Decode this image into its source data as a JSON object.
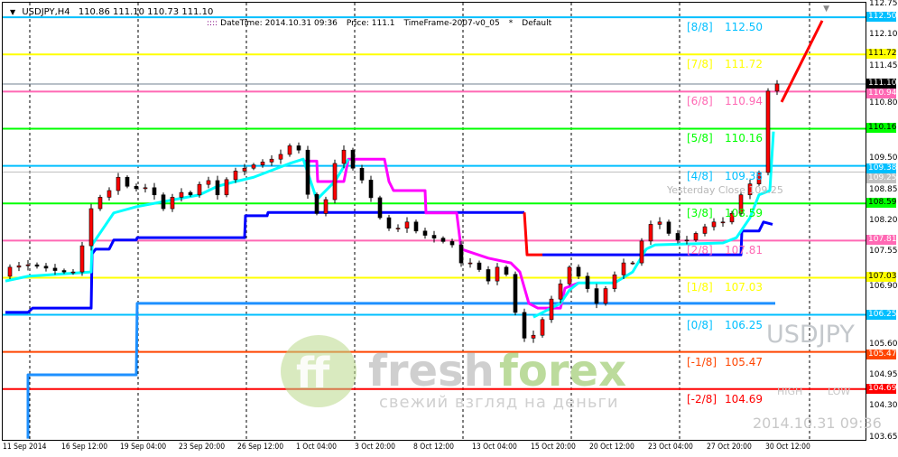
{
  "header": {
    "symbol": "USDJPY,H4",
    "ohlc": "110.86 111.10 110.73 111.10"
  },
  "info_bar": {
    "datetime": "DateTime: 2014.10.31 09:36",
    "price": "Price: 111.1",
    "timeframe": "TimeFrame-2007-v0_05",
    "mode": "Default"
  },
  "watermarks": {
    "symbol": "USDJPY",
    "high": "HIGH",
    "low": "LOW",
    "datetime": "2014.10.31 09:36",
    "yesterday_close": "Yesterday Close 109.25"
  },
  "logo": {
    "brand": "freshforex",
    "tagline": "свежий взгляд на деньги"
  },
  "colors": {
    "up_candle": "#ff0000",
    "down_candle": "#000000",
    "cyan": "#00ffff",
    "magenta": "#ff00ff",
    "blue": "#0000ff",
    "light_blue": "#1e90ff",
    "trend": "#ff0000"
  },
  "chart_data": {
    "type": "candlestick",
    "ylim": [
      103.65,
      112.75
    ],
    "y_ticks": [
      "112.75",
      "112.10",
      "111.45",
      "110.80",
      "109.50",
      "108.85",
      "108.20",
      "107.55",
      "106.90",
      "105.60",
      "104.95",
      "104.30",
      "103.65"
    ],
    "x_ticks": [
      "11 Sep 2014",
      "16 Sep 12:00",
      "19 Sep 04:00",
      "23 Sep 20:00",
      "26 Sep 12:00",
      "1 Oct 04:00",
      "3 Oct 20:00",
      "8 Oct 12:00",
      "13 Oct 04:00",
      "15 Oct 20:00",
      "20 Oct 12:00",
      "23 Oct 04:00",
      "27 Oct 20:00",
      "30 Oct 12:00"
    ],
    "grid": "vertical dashed",
    "closes": [
      107.06,
      107.25,
      107.28,
      107.3,
      107.27,
      107.23,
      107.18,
      107.15,
      107.15,
      107.7,
      108.48,
      108.72,
      108.86,
      109.14,
      108.95,
      108.9,
      108.92,
      108.77,
      108.48,
      108.72,
      108.82,
      108.77,
      108.99,
      109.07,
      108.77,
      109.09,
      109.27,
      109.33,
      109.4,
      109.46,
      109.52,
      109.62,
      109.8,
      109.71,
      108.78,
      108.38,
      108.67,
      109.43,
      109.71,
      109.33,
      109.08,
      108.71,
      108.29,
      108.07,
      108.07,
      108.2,
      108.01,
      107.92,
      107.86,
      107.79,
      107.72,
      107.34,
      107.34,
      107.2,
      106.96,
      107.25,
      107.1,
      106.3,
      105.76,
      105.82,
      106.15,
      106.58,
      106.9,
      107.25,
      107.06,
      106.8,
      106.49,
      106.8,
      107.09,
      107.34,
      107.34,
      107.8,
      108.15,
      108.2,
      107.96,
      107.82,
      107.82,
      107.96,
      108.1,
      108.2,
      108.2,
      108.38,
      108.77,
      109.0,
      109.24,
      110.95
    ],
    "last_close": 111.1,
    "murrey_levels": [
      {
        "label": "[8/8]",
        "value": "112.50",
        "color": "#00bfff"
      },
      {
        "label": "[7/8]",
        "value": "111.72",
        "color": "#ffff00"
      },
      {
        "label": "[6/8]",
        "value": "110.94",
        "color": "#ff69b4"
      },
      {
        "label": "[5/8]",
        "value": "110.16",
        "color": "#00ff00"
      },
      {
        "label": "[4/8]",
        "value": "109.38",
        "color": "#00bfff"
      },
      {
        "label": "[3/8]",
        "value": "108.59",
        "color": "#00ff00"
      },
      {
        "label": "[2/8]",
        "value": "107.81",
        "color": "#ff69b4"
      },
      {
        "label": "[1/8]",
        "value": "107.03",
        "color": "#ffff00"
      },
      {
        "label": "[0/8]",
        "value": "106.25",
        "color": "#00bfff"
      },
      {
        "label": "[-1/8]",
        "value": "105.47",
        "color": "#ff4500"
      },
      {
        "label": "[-2/8]",
        "value": "104.69",
        "color": "#ff0000"
      }
    ],
    "price_badges": [
      {
        "value": "111.10",
        "bg": "#000000",
        "fg": "#ffffff"
      },
      {
        "value": "109.25",
        "bg": "#c0c0c0",
        "fg": "#ffffff"
      }
    ],
    "indicator_lines": {
      "cyan": [
        [
          0,
          106.96
        ],
        [
          2.5,
          107.06
        ],
        [
          9.5,
          107.15
        ],
        [
          9.6,
          107.72
        ],
        [
          12,
          108.39
        ],
        [
          14.5,
          108.52
        ],
        [
          21.5,
          108.77
        ],
        [
          23.5,
          108.95
        ],
        [
          25.5,
          109.05
        ],
        [
          27.5,
          109.14
        ],
        [
          31.5,
          109.43
        ],
        [
          33,
          109.52
        ],
        [
          34.5,
          108.67
        ],
        [
          36.5,
          109.05
        ],
        [
          38,
          109.52
        ],
        [
          null,
          null
        ],
        [
          58.5,
          106.2
        ],
        [
          61.5,
          106.49
        ],
        [
          62.5,
          106.77
        ],
        [
          63.5,
          106.92
        ],
        [
          67.5,
          106.92
        ],
        [
          69.5,
          107.15
        ],
        [
          71,
          107.63
        ],
        [
          72,
          107.72
        ],
        [
          79.5,
          107.76
        ],
        [
          81,
          107.87
        ],
        [
          82.5,
          108.29
        ],
        [
          83.5,
          108.77
        ],
        [
          84.7,
          108.86
        ],
        [
          85.1,
          110.1
        ]
      ],
      "magenta": [
        [
          33,
          109.48
        ],
        [
          34.5,
          109.48
        ],
        [
          34.6,
          109.05
        ],
        [
          37.5,
          109.05
        ],
        [
          38,
          109.52
        ],
        [
          42,
          109.52
        ],
        [
          42.5,
          109.05
        ],
        [
          43,
          108.86
        ],
        [
          46.5,
          108.86
        ],
        [
          46.6,
          108.39
        ],
        [
          50,
          108.39
        ],
        [
          50.5,
          107.63
        ],
        [
          53.5,
          107.44
        ],
        [
          56,
          107.34
        ],
        [
          57,
          107.15
        ],
        [
          58,
          106.49
        ],
        [
          59,
          106.39
        ],
        [
          61.5,
          106.39
        ],
        [
          62,
          106.81
        ],
        [
          63.5,
          106.92
        ]
      ],
      "blue": [
        [
          0,
          106.3
        ],
        [
          2.5,
          106.3
        ],
        [
          3,
          106.39
        ],
        [
          9.5,
          106.39
        ],
        [
          9.6,
          107.53
        ],
        [
          10,
          107.63
        ],
        [
          11.5,
          107.63
        ],
        [
          12,
          107.82
        ],
        [
          14.5,
          107.82
        ],
        [
          14.6,
          107.87
        ],
        [
          26.5,
          107.87
        ],
        [
          26.6,
          108.33
        ],
        [
          29,
          108.33
        ],
        [
          29.1,
          108.4
        ],
        [
          57.5,
          108.4
        ]
      ],
      "red_step": [
        [
          57.5,
          108.4
        ],
        [
          57.8,
          107.51
        ],
        [
          59.5,
          107.51
        ]
      ],
      "blue2": [
        [
          59.5,
          107.51
        ],
        [
          81.5,
          107.51
        ],
        [
          81.6,
          108.01
        ],
        [
          83.5,
          108.01
        ],
        [
          84,
          108.2
        ],
        [
          85,
          108.15
        ]
      ],
      "light_blue": [
        [
          0,
          106.3
        ],
        [
          2.5,
          106.3
        ],
        [
          null,
          null
        ],
        [
          2.5,
          103.65
        ],
        [
          2.5,
          104.99
        ],
        [
          14.5,
          104.99
        ],
        [
          14.6,
          106.49
        ],
        [
          85.3,
          106.49
        ]
      ],
      "trend": [
        [
          86,
          110.72
        ],
        [
          90.5,
          112.43
        ]
      ]
    }
  }
}
